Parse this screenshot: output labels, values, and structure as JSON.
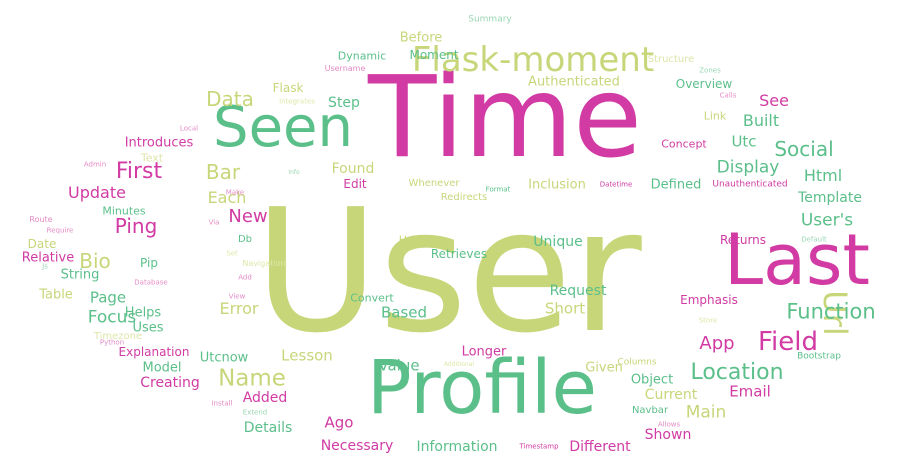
{
  "colors": {
    "background": "#ffffff",
    "green": "#5bbf8a",
    "olive": "#c8d67a",
    "pink": "#d13ba3",
    "lightpink": "#e48cc6",
    "lightolive": "#dfe6a8",
    "lightgreen": "#9ad6b3"
  },
  "words": [
    {
      "text": "User",
      "color": "olive"
    },
    {
      "text": "Time",
      "color": "pink"
    },
    {
      "text": "Profile",
      "color": "green"
    },
    {
      "text": "Last",
      "color": "pink"
    },
    {
      "text": "Seen",
      "color": "green"
    },
    {
      "text": "Flask-moment",
      "color": "olive"
    },
    {
      "text": "Url",
      "color": "olive"
    },
    {
      "text": "Field",
      "color": "pink"
    },
    {
      "text": "Location",
      "color": "green"
    },
    {
      "text": "Function",
      "color": "green"
    },
    {
      "text": "Name",
      "color": "olive"
    },
    {
      "text": "First",
      "color": "pink"
    },
    {
      "text": "Bar",
      "color": "olive"
    },
    {
      "text": "Data",
      "color": "olive"
    },
    {
      "text": "Built",
      "color": "green"
    },
    {
      "text": "Social",
      "color": "green"
    },
    {
      "text": "Display",
      "color": "green"
    },
    {
      "text": "Bio",
      "color": "olive"
    },
    {
      "text": "Ping",
      "color": "pink"
    },
    {
      "text": "New",
      "color": "pink"
    },
    {
      "text": "Update",
      "color": "pink"
    },
    {
      "text": "Page",
      "color": "green"
    },
    {
      "text": "Focus",
      "color": "green"
    },
    {
      "text": "Html",
      "color": "green"
    },
    {
      "text": "Template",
      "color": "green"
    },
    {
      "text": "User's",
      "color": "green"
    },
    {
      "text": "See",
      "color": "pink"
    },
    {
      "text": "Utc",
      "color": "green"
    },
    {
      "text": "App",
      "color": "pink"
    },
    {
      "text": "Email",
      "color": "pink"
    },
    {
      "text": "Main",
      "color": "olive"
    },
    {
      "text": "Current",
      "color": "olive"
    },
    {
      "text": "Shown",
      "color": "pink"
    },
    {
      "text": "Different",
      "color": "pink"
    },
    {
      "text": "Ago",
      "color": "pink"
    },
    {
      "text": "Added",
      "color": "pink"
    },
    {
      "text": "Details",
      "color": "green"
    },
    {
      "text": "Necessary",
      "color": "pink"
    },
    {
      "text": "Information",
      "color": "green"
    },
    {
      "text": "Lesson",
      "color": "olive"
    },
    {
      "text": "Creating",
      "color": "pink"
    },
    {
      "text": "Model",
      "color": "green"
    },
    {
      "text": "Utcnow",
      "color": "green"
    },
    {
      "text": "Explanation",
      "color": "pink"
    },
    {
      "text": "Uses",
      "color": "green"
    },
    {
      "text": "Helps",
      "color": "green"
    },
    {
      "text": "Error",
      "color": "olive"
    },
    {
      "text": "Value",
      "color": "green"
    },
    {
      "text": "Based",
      "color": "green"
    },
    {
      "text": "Short",
      "color": "olive"
    },
    {
      "text": "Request",
      "color": "green"
    },
    {
      "text": "Longer",
      "color": "pink"
    },
    {
      "text": "Given",
      "color": "olive"
    },
    {
      "text": "Object",
      "color": "green"
    },
    {
      "text": "Unique",
      "color": "green"
    },
    {
      "text": "Retrieves",
      "color": "green"
    },
    {
      "text": "Handles",
      "color": "olive"
    },
    {
      "text": "Convert",
      "color": "green"
    },
    {
      "text": "Table",
      "color": "olive"
    },
    {
      "text": "String",
      "color": "green"
    },
    {
      "text": "Relative",
      "color": "pink"
    },
    {
      "text": "Pip",
      "color": "green"
    },
    {
      "text": "Date",
      "color": "olive"
    },
    {
      "text": "Minutes",
      "color": "green"
    },
    {
      "text": "Each",
      "color": "olive"
    },
    {
      "text": "Found",
      "color": "olive"
    },
    {
      "text": "Edit",
      "color": "pink"
    },
    {
      "text": "Step",
      "color": "green"
    },
    {
      "text": "Introduces",
      "color": "pink"
    },
    {
      "text": "Text",
      "color": "lightolive"
    },
    {
      "text": "Flask",
      "color": "olive"
    },
    {
      "text": "Before",
      "color": "olive"
    },
    {
      "text": "Moment",
      "color": "green"
    },
    {
      "text": "Authenticated",
      "color": "olive"
    },
    {
      "text": "Dynamic",
      "color": "green"
    },
    {
      "text": "Username",
      "color": "lightpink"
    },
    {
      "text": "Summary",
      "color": "lightgreen"
    },
    {
      "text": "Structure",
      "color": "lightolive"
    },
    {
      "text": "Zones",
      "color": "lightgreen"
    },
    {
      "text": "Overview",
      "color": "green"
    },
    {
      "text": "Link",
      "color": "olive"
    },
    {
      "text": "Concept",
      "color": "pink"
    },
    {
      "text": "Whenever",
      "color": "olive"
    },
    {
      "text": "Inclusion",
      "color": "olive"
    },
    {
      "text": "Defined",
      "color": "green"
    },
    {
      "text": "Unauthenticated",
      "color": "pink"
    },
    {
      "text": "Datetime",
      "color": "pink"
    },
    {
      "text": "Format",
      "color": "green"
    },
    {
      "text": "Redirects",
      "color": "olive"
    },
    {
      "text": "Returns",
      "color": "pink"
    },
    {
      "text": "Default",
      "color": "lightgreen"
    },
    {
      "text": "Emphasis",
      "color": "pink"
    },
    {
      "text": "Store",
      "color": "lightolive"
    },
    {
      "text": "Bootstrap",
      "color": "green"
    },
    {
      "text": "Columns",
      "color": "olive"
    },
    {
      "text": "Navbar",
      "color": "green"
    },
    {
      "text": "Allows",
      "color": "lightpink"
    },
    {
      "text": "Timestamp",
      "color": "pink"
    },
    {
      "text": "Additional",
      "color": "lightolive"
    },
    {
      "text": "Timezone",
      "color": "lightolive"
    },
    {
      "text": "Python",
      "color": "lightpink"
    },
    {
      "text": "Install",
      "color": "lightpink"
    },
    {
      "text": "Extend",
      "color": "lightgreen"
    },
    {
      "text": "View",
      "color": "lightpink"
    },
    {
      "text": "Database",
      "color": "lightpink"
    },
    {
      "text": "Js",
      "color": "lightgreen"
    },
    {
      "text": "Route",
      "color": "lightpink"
    },
    {
      "text": "Require",
      "color": "lightpink"
    },
    {
      "text": "Admin",
      "color": "lightpink"
    },
    {
      "text": "Local",
      "color": "lightpink"
    },
    {
      "text": "Make",
      "color": "lightpink"
    },
    {
      "text": "Info",
      "color": "lightgreen"
    },
    {
      "text": "Integrates",
      "color": "lightolive"
    },
    {
      "text": "Calls",
      "color": "lightpink"
    },
    {
      "text": "Set",
      "color": "lightolive"
    },
    {
      "text": "Navigation",
      "color": "lightolive"
    },
    {
      "text": "Add",
      "color": "lightpink"
    },
    {
      "text": "Db",
      "color": "green"
    },
    {
      "text": "Via",
      "color": "lightpink"
    }
  ]
}
